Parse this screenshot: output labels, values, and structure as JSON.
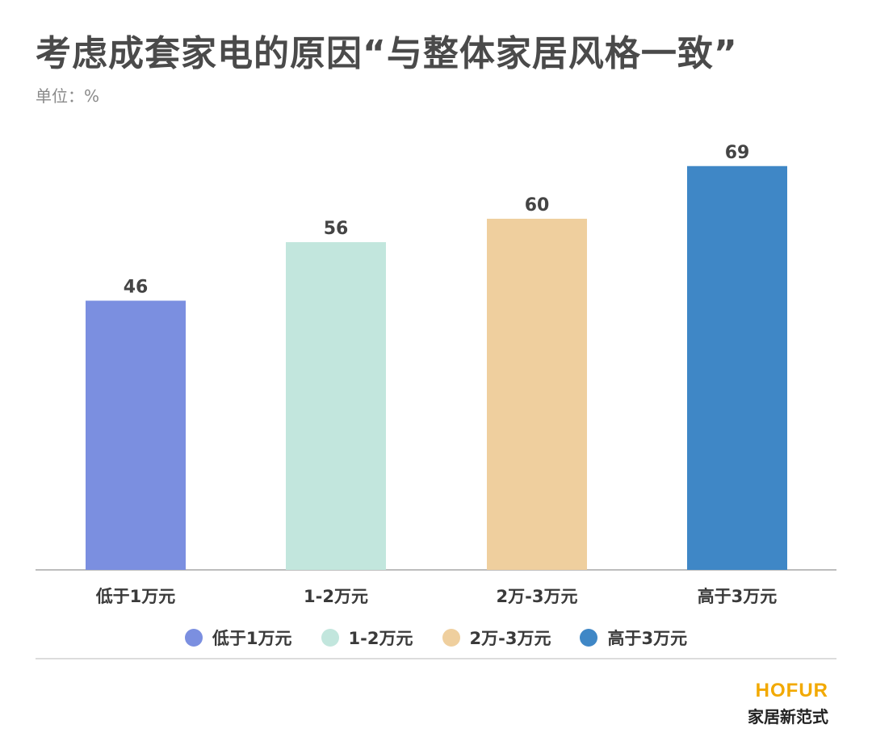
{
  "title": "考虑成套家电的原因“与整体家居风格一致”",
  "unit": "单位：%",
  "chart_data": {
    "type": "bar",
    "categories": [
      "低于1万元",
      "1-2万元",
      "2万-3万元",
      "高于3万元"
    ],
    "values": [
      46,
      56,
      60,
      69
    ],
    "colors": [
      "#7b8fe0",
      "#c2e6dd",
      "#efcf9e",
      "#3f87c6"
    ],
    "ylim": [
      0,
      75
    ],
    "grid": false,
    "legend_position": "bottom",
    "xlabel": "",
    "ylabel": ""
  },
  "legend": [
    {
      "label": "低于1万元",
      "color": "#7b8fe0"
    },
    {
      "label": "1-2万元",
      "color": "#c2e6dd"
    },
    {
      "label": "2万-3万元",
      "color": "#efcf9e"
    },
    {
      "label": "高于3万元",
      "color": "#3f87c6"
    }
  ],
  "brand": {
    "logo": "HOFUR",
    "tagline": "家居新范式"
  }
}
